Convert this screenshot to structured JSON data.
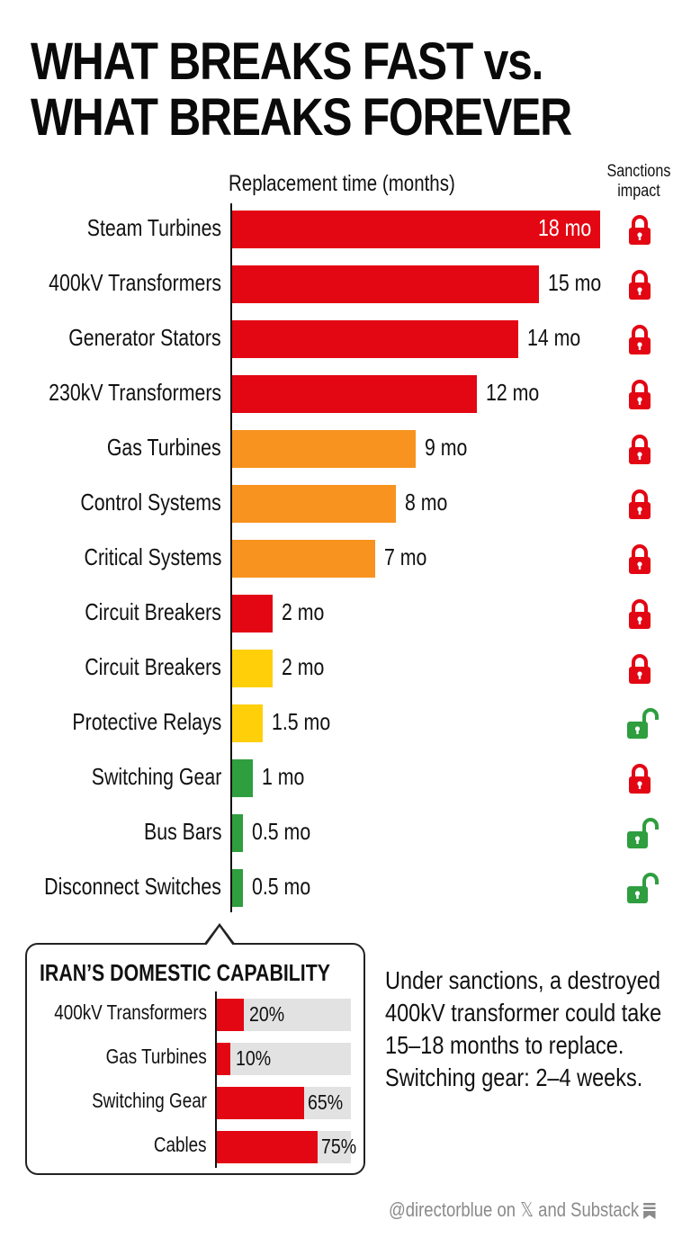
{
  "title": {
    "line1": "WHAT BREAKS FAST vs.",
    "line2": "WHAT BREAKS FOREVER"
  },
  "axis_title": "Replacement time (months)",
  "sanctions_header": "Sanctions impact",
  "colors": {
    "red": "#e30613",
    "orange": "#f7931e",
    "yellow": "#ffcf0a",
    "green": "#2e9e3f",
    "lock_locked": "#e30613",
    "lock_unlocked": "#2e9e3f",
    "track_gray": "#e2e2e2"
  },
  "rows": [
    {
      "label": "Steam Turbines",
      "value": 18,
      "value_label": "18 mo",
      "color": "red",
      "sanctions": "locked"
    },
    {
      "label": "400kV Transformers",
      "value": 15,
      "value_label": "15 mo",
      "color": "red",
      "sanctions": "locked"
    },
    {
      "label": "Generator Stators",
      "value": 14,
      "value_label": "14 mo",
      "color": "red",
      "sanctions": "locked"
    },
    {
      "label": "230kV Transformers",
      "value": 12,
      "value_label": "12 mo",
      "color": "red",
      "sanctions": "locked"
    },
    {
      "label": "Gas Turbines",
      "value": 9,
      "value_label": "9 mo",
      "color": "orange",
      "sanctions": "locked"
    },
    {
      "label": "Control Systems",
      "value": 8,
      "value_label": "8 mo",
      "color": "orange",
      "sanctions": "locked"
    },
    {
      "label": "Critical Systems",
      "value": 7,
      "value_label": "7 mo",
      "color": "orange",
      "sanctions": "locked"
    },
    {
      "label": "Circuit Breakers",
      "value": 2,
      "value_label": "2 mo",
      "color": "red",
      "sanctions": "locked"
    },
    {
      "label": "Circuit Breakers",
      "value": 2,
      "value_label": "2 mo",
      "color": "yellow",
      "sanctions": "locked"
    },
    {
      "label": "Protective Relays",
      "value": 1.5,
      "value_label": "1.5 mo",
      "color": "yellow",
      "sanctions": "unlocked"
    },
    {
      "label": "Switching Gear",
      "value": 1,
      "value_label": "1 mo",
      "color": "green",
      "sanctions": "locked"
    },
    {
      "label": "Bus Bars",
      "value": 0.5,
      "value_label": "0.5 mo",
      "color": "green",
      "sanctions": "unlocked"
    },
    {
      "label": "Disconnect Switches",
      "value": 0.5,
      "value_label": "0.5 mo",
      "color": "green",
      "sanctions": "unlocked"
    }
  ],
  "domestic": {
    "title": "IRAN’S DOMESTIC CAPABILITY",
    "rows": [
      {
        "label": "400kV Transformers",
        "value": 20,
        "value_label": "20%"
      },
      {
        "label": "Gas Turbines",
        "value": 10,
        "value_label": "10%"
      },
      {
        "label": "Switching Gear",
        "value": 65,
        "value_label": "65%"
      },
      {
        "label": "Cables",
        "value": 75,
        "value_label": "75%"
      }
    ]
  },
  "note": "Under sanctions, a destroyed 400kV transformer could take 15–18 months to replace. Switching gear: 2–4 weeks.",
  "credit": "@directorblue on 𝕏 and Substack",
  "chart_data": [
    {
      "type": "bar",
      "orientation": "horizontal",
      "title": "WHAT BREAKS FAST vs. WHAT BREAKS FOREVER",
      "xlabel": "Replacement time (months)",
      "ylabel": "",
      "categories": [
        "Steam Turbines",
        "400kV Transformers",
        "Generator Stators",
        "230kV Transformers",
        "Gas Turbines",
        "Control Systems",
        "Critical Systems",
        "Circuit Breakers",
        "Circuit Breakers",
        "Protective Relays",
        "Switching Gear",
        "Bus Bars",
        "Disconnect Switches"
      ],
      "values": [
        18,
        15,
        14,
        12,
        9,
        8,
        7,
        2,
        2,
        1.5,
        1,
        0.5,
        0.5
      ],
      "bar_colors": [
        "red",
        "red",
        "red",
        "red",
        "orange",
        "orange",
        "orange",
        "red",
        "yellow",
        "yellow",
        "green",
        "green",
        "green"
      ],
      "sanctions_impact": [
        "locked",
        "locked",
        "locked",
        "locked",
        "locked",
        "locked",
        "locked",
        "locked",
        "locked",
        "unlocked",
        "locked",
        "unlocked",
        "unlocked"
      ],
      "xlim": [
        0,
        18
      ],
      "grid": false,
      "legend": "none"
    },
    {
      "type": "bar",
      "orientation": "horizontal",
      "title": "IRAN’S DOMESTIC CAPABILITY",
      "categories": [
        "400kV Transformers",
        "Gas Turbines",
        "Switching Gear",
        "Cables"
      ],
      "values": [
        20,
        10,
        65,
        75
      ],
      "unit": "%",
      "xlim": [
        0,
        100
      ],
      "grid": false
    }
  ]
}
